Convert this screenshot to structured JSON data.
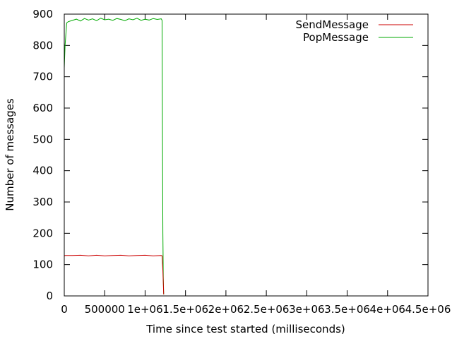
{
  "chart_data": {
    "type": "line",
    "title": "",
    "xlabel": "Time since test started (milliseconds)",
    "ylabel": "Number of messages",
    "xlim": [
      0,
      4500000
    ],
    "ylim": [
      0,
      900
    ],
    "x_ticks": [
      0,
      500000,
      1000000,
      1500000,
      2000000,
      2500000,
      3000000,
      3500000,
      4000000,
      4500000
    ],
    "x_tick_labels": [
      "0",
      "500000",
      "1e+06",
      "1.5e+06",
      "2e+06",
      "2.5e+06",
      "3e+06",
      "3.5e+06",
      "4e+06",
      "4.5e+06"
    ],
    "y_ticks": [
      0,
      100,
      200,
      300,
      400,
      500,
      600,
      700,
      800,
      900
    ],
    "y_tick_labels": [
      "0",
      "100",
      "200",
      "300",
      "400",
      "500",
      "600",
      "700",
      "800",
      "900"
    ],
    "grid": false,
    "legend_position": "top-right",
    "series": [
      {
        "name": "SendMessage",
        "color": "#cc0000",
        "x": [
          0,
          10000,
          100000,
          200000,
          300000,
          400000,
          500000,
          600000,
          700000,
          800000,
          900000,
          1000000,
          1100000,
          1200000,
          1210000,
          1220000,
          1230000
        ],
        "y": [
          128,
          129,
          129,
          130,
          128,
          130,
          128,
          129,
          130,
          128,
          129,
          130,
          128,
          129,
          128,
          80,
          5
        ]
      },
      {
        "name": "PopMessage",
        "color": "#00aa00",
        "x": [
          0,
          10000,
          30000,
          50000,
          100000,
          150000,
          200000,
          250000,
          300000,
          350000,
          400000,
          450000,
          500000,
          550000,
          600000,
          650000,
          700000,
          750000,
          800000,
          850000,
          900000,
          950000,
          1000000,
          1050000,
          1100000,
          1150000,
          1200000,
          1210000,
          1215000,
          1220000,
          1225000,
          1230000
        ],
        "y": [
          728,
          800,
          872,
          876,
          880,
          884,
          878,
          886,
          881,
          885,
          879,
          887,
          882,
          884,
          880,
          886,
          883,
          879,
          885,
          882,
          887,
          880,
          884,
          881,
          886,
          883,
          885,
          880,
          510,
          200,
          60,
          5
        ]
      }
    ]
  }
}
